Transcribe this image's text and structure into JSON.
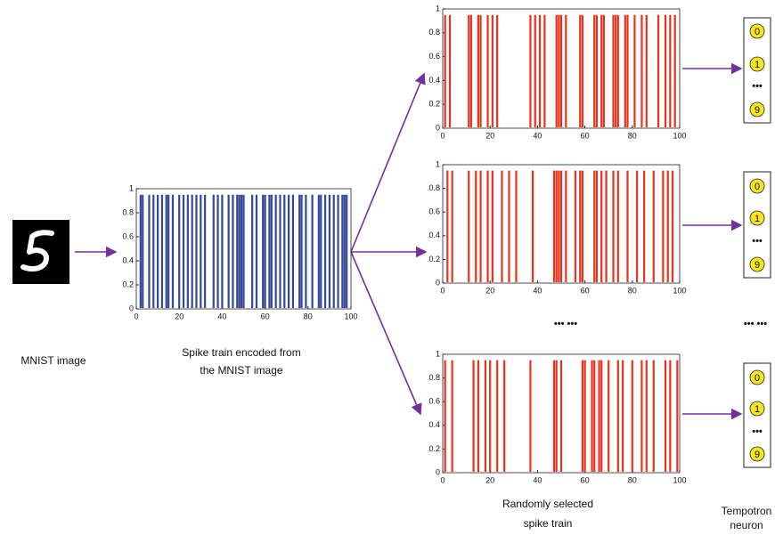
{
  "mnist_image": {
    "label": "MNIST image"
  },
  "encoded": {
    "label": [
      "Spike train encoded from",
      "the MNIST image"
    ],
    "chart": {
      "type": "spike",
      "color": "#34489a",
      "xlim": [
        0,
        100
      ],
      "ylim": [
        0,
        1
      ],
      "xticks": [
        0,
        20,
        40,
        60,
        80,
        100
      ],
      "yticks": [
        0,
        0.2,
        0.4,
        0.6,
        0.8,
        1
      ],
      "spike_height": 0.95,
      "spikes": [
        2,
        3,
        6,
        8,
        10,
        12,
        14,
        15,
        17,
        20,
        22,
        24,
        26,
        28,
        30,
        32,
        36,
        38,
        40,
        43,
        45,
        47,
        48,
        49,
        50,
        54,
        56,
        59,
        60,
        62,
        63,
        65,
        67,
        69,
        71,
        73,
        76,
        77,
        79,
        82,
        85,
        86,
        88,
        90,
        92,
        94,
        96,
        97,
        98
      ]
    }
  },
  "selected": {
    "label": [
      "Randomly selected",
      "spike train"
    ],
    "ellipsis": "••• •••",
    "charts": [
      {
        "type": "spike",
        "color": "#e8321e",
        "xlim": [
          0,
          100
        ],
        "ylim": [
          0,
          1
        ],
        "xticks": [
          0,
          20,
          40,
          60,
          80,
          100
        ],
        "yticks": [
          0,
          0.2,
          0.4,
          0.6,
          0.8,
          1
        ],
        "spike_height": 0.95,
        "spikes": [
          1,
          3,
          11,
          12,
          15,
          16,
          19,
          21,
          23,
          37,
          39,
          41,
          43,
          48,
          49,
          50,
          52,
          58,
          59,
          64,
          65,
          67,
          68,
          72,
          73,
          74,
          77,
          78,
          81,
          84,
          86,
          91,
          94,
          96,
          98
        ]
      },
      {
        "type": "spike",
        "color": "#e8321e",
        "xlim": [
          0,
          100
        ],
        "ylim": [
          0,
          1
        ],
        "xticks": [
          0,
          20,
          40,
          60,
          80,
          100
        ],
        "yticks": [
          0,
          0.2,
          0.4,
          0.6,
          0.8,
          1
        ],
        "spike_height": 0.95,
        "spikes": [
          2,
          4,
          11,
          14,
          16,
          19,
          21,
          25,
          28,
          31,
          38,
          47,
          48,
          49,
          50,
          52,
          56,
          58,
          59,
          64,
          65,
          67,
          69,
          72,
          74,
          78,
          82,
          85,
          89,
          93,
          95,
          97
        ]
      },
      {
        "type": "spike",
        "color": "#e8321e",
        "xlim": [
          0,
          100
        ],
        "ylim": [
          0,
          1
        ],
        "xticks": [
          0,
          20,
          40,
          60,
          80,
          100
        ],
        "yticks": [
          0,
          0.2,
          0.4,
          0.6,
          0.8,
          1
        ],
        "spike_height": 0.95,
        "spikes": [
          1,
          4,
          13,
          15,
          18,
          20,
          23,
          26,
          37,
          47,
          48,
          50,
          59,
          60,
          63,
          64,
          66,
          67,
          70,
          74,
          76,
          80,
          84,
          86,
          89,
          94,
          96,
          99
        ]
      }
    ]
  },
  "tempotron": {
    "label": [
      "Tempotron",
      "neuron"
    ],
    "ellipsis": "••• •••",
    "neurons": [
      {
        "labels": [
          "0",
          "1",
          "9"
        ],
        "ellipsis": "•••"
      },
      {
        "labels": [
          "0",
          "1",
          "9"
        ],
        "ellipsis": "•••"
      },
      {
        "labels": [
          "0",
          "1",
          "9"
        ],
        "ellipsis": "•••"
      }
    ]
  }
}
